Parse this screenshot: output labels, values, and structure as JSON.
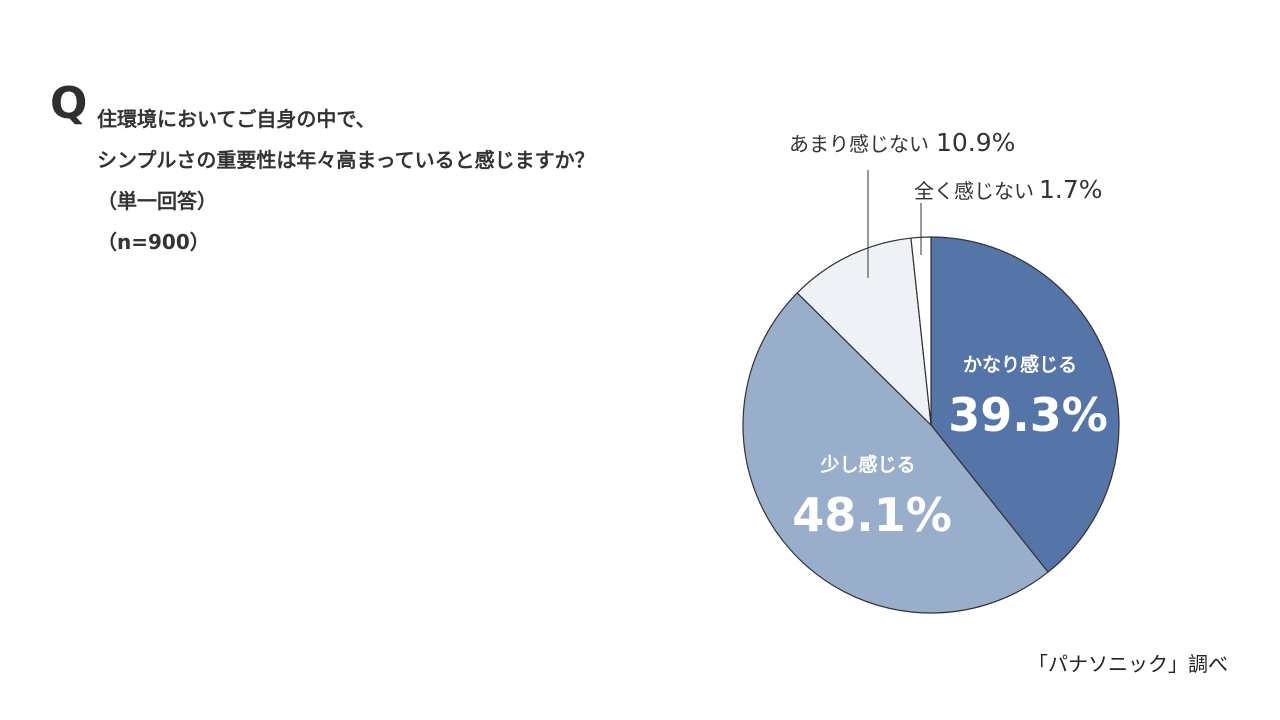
{
  "question": {
    "mark": "Q",
    "lines": [
      "住環境においてご自身の中で、",
      "シンプルさの重要性は年々高まっていると感じますか？",
      "（単一回答）",
      "（n=900）"
    ]
  },
  "source": "「パナソニック」調べ",
  "chart_data": {
    "type": "pie",
    "start_angle_deg": 0,
    "direction": "clockwise",
    "slices": [
      {
        "label": "かなり感じる",
        "value": 39.3,
        "value_label": "39.3%",
        "color": "#5574a8",
        "label_position": "inside"
      },
      {
        "label": "少し感じる",
        "value": 48.1,
        "value_label": "48.1%",
        "color": "#98aecb",
        "label_position": "inside"
      },
      {
        "label": "あまり感じない",
        "value": 10.9,
        "value_label": "10.9%",
        "color": "#eef1f6",
        "label_position": "outside"
      },
      {
        "label": "全く感じない",
        "value": 1.7,
        "value_label": "1.7%",
        "color": "#ffffff",
        "label_position": "outside"
      }
    ]
  }
}
